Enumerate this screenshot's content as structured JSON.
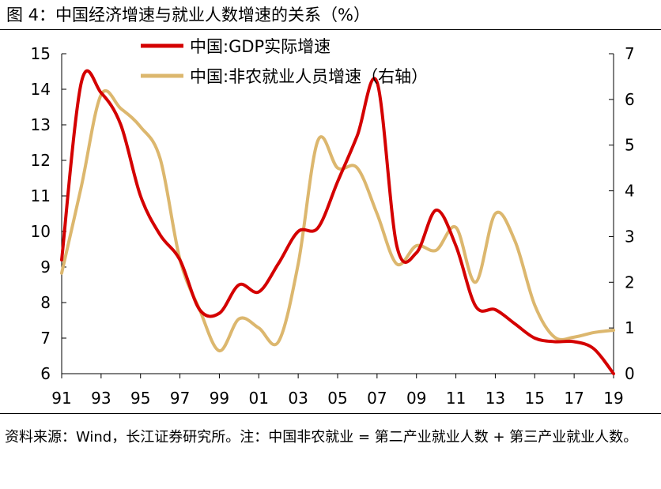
{
  "figure": {
    "title": "图 4：中国经济增速与就业人数增速的关系（%）",
    "source_note": "资料来源：Wind，长江证券研究所。注：中国非农就业 = 第二产业就业人数 + 第三产业就业人数。"
  },
  "colors": {
    "gdp": "#d40000",
    "employment": "#dcb76e",
    "axis": "#000000"
  },
  "chart_data": {
    "type": "line",
    "title": "",
    "xlabel": "",
    "ylabel": "",
    "legend_position": "top-center",
    "grid": false,
    "x": [
      1991,
      1992,
      1993,
      1994,
      1995,
      1996,
      1997,
      1998,
      1999,
      2000,
      2001,
      2002,
      2003,
      2004,
      2005,
      2006,
      2007,
      2008,
      2009,
      2010,
      2011,
      2012,
      2013,
      2014,
      2015,
      2016,
      2017,
      2018,
      2019
    ],
    "x_tick_labels": [
      "91",
      "93",
      "95",
      "97",
      "99",
      "01",
      "03",
      "05",
      "07",
      "09",
      "11",
      "13",
      "15",
      "17",
      "19"
    ],
    "x_tick_values": [
      1991,
      1993,
      1995,
      1997,
      1999,
      2001,
      2003,
      2005,
      2007,
      2009,
      2011,
      2013,
      2015,
      2017,
      2019
    ],
    "y_left": {
      "range": [
        6,
        15
      ],
      "ticks": [
        "6",
        "7",
        "8",
        "9",
        "10",
        "11",
        "12",
        "13",
        "14",
        "15"
      ]
    },
    "y_right": {
      "range": [
        0,
        7
      ],
      "ticks": [
        "0",
        "1",
        "2",
        "3",
        "4",
        "5",
        "6",
        "7"
      ]
    },
    "series": [
      {
        "name": "中国:GDP实际增速",
        "axis": "left",
        "values": [
          9.2,
          14.2,
          13.9,
          13.0,
          11.0,
          9.9,
          9.2,
          7.8,
          7.7,
          8.5,
          8.3,
          9.1,
          10.0,
          10.1,
          11.4,
          12.7,
          14.2,
          9.6,
          9.4,
          10.6,
          9.6,
          7.9,
          7.8,
          7.4,
          7.0,
          6.9,
          6.9,
          6.7,
          6.0
        ]
      },
      {
        "name": "中国:非农就业人员增速（右轴）",
        "axis": "right",
        "values": [
          2.2,
          4.1,
          6.1,
          5.8,
          5.4,
          4.7,
          2.5,
          1.4,
          0.5,
          1.2,
          1.0,
          0.7,
          2.4,
          5.1,
          4.5,
          4.5,
          3.5,
          2.4,
          2.8,
          2.7,
          3.2,
          2.0,
          3.5,
          2.9,
          1.5,
          0.8,
          0.8,
          0.9,
          0.95
        ]
      }
    ]
  }
}
